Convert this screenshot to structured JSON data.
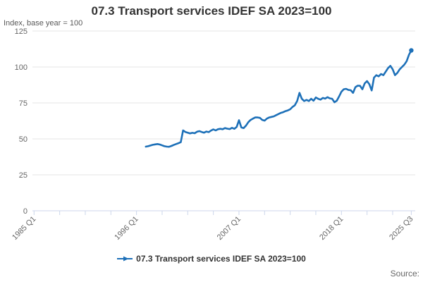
{
  "chart": {
    "title": "07.3 Transport services IDEF SA 2023=100",
    "subtitle": "Index, base year = 100",
    "source_label": "Source:"
  },
  "chart_data": {
    "type": "line",
    "title": "07.3 Transport services IDEF SA 2023=100",
    "subtitle": "Index, base year = 100",
    "ylabel": "Index, base year = 100",
    "ylim": [
      0,
      125
    ],
    "y_ticks": [
      0,
      25,
      50,
      75,
      100,
      125
    ],
    "grid": true,
    "legend_position": "bottom",
    "x_axis": {
      "start": "1985 Q1",
      "end": "2025 Q3",
      "unit": "quarter",
      "total_quarters": 162,
      "minor_tick_every_quarters": 11,
      "labeled_ticks": [
        {
          "label": "1985 Q1",
          "quarter_index": 0
        },
        {
          "label": "1996 Q1",
          "quarter_index": 44
        },
        {
          "label": "2007 Q1",
          "quarter_index": 88
        },
        {
          "label": "2018 Q1",
          "quarter_index": 132
        },
        {
          "label": "2025 Q3",
          "quarter_index": 162
        }
      ]
    },
    "series": [
      {
        "name": "07.3 Transport services IDEF SA 2023=100",
        "color": "#1d70b8",
        "frequency": "quarterly",
        "start": "1997 Q1",
        "end": "2025 Q3",
        "start_quarter_index": 48,
        "values": [
          44.6,
          44.9,
          45.4,
          45.9,
          46.2,
          46.4,
          46.1,
          45.5,
          44.9,
          44.6,
          44.5,
          45.1,
          45.8,
          46.4,
          47.0,
          47.7,
          55.9,
          54.8,
          54.3,
          53.8,
          54.2,
          53.9,
          55.0,
          55.4,
          54.8,
          54.3,
          55.1,
          54.7,
          55.8,
          56.6,
          55.9,
          56.7,
          57.0,
          56.7,
          57.5,
          57.1,
          56.8,
          57.7,
          57.0,
          58.3,
          63.0,
          58.0,
          57.5,
          59.2,
          61.6,
          63.2,
          64.1,
          64.9,
          64.9,
          64.6,
          63.2,
          62.7,
          64.1,
          64.9,
          65.3,
          65.7,
          66.5,
          67.3,
          68.1,
          68.6,
          69.3,
          69.8,
          70.6,
          72.2,
          73.4,
          76.3,
          82.0,
          77.9,
          76.3,
          77.1,
          76.3,
          77.9,
          76.5,
          78.8,
          77.9,
          77.3,
          78.5,
          78.0,
          79.0,
          78.2,
          77.9,
          75.5,
          76.5,
          79.5,
          82.8,
          84.5,
          84.8,
          84.0,
          83.8,
          82.0,
          86.0,
          87.0,
          86.9,
          84.5,
          88.6,
          90.2,
          88.0,
          83.7,
          92.6,
          94.3,
          93.5,
          95.1,
          94.3,
          96.7,
          99.2,
          100.8,
          98.4,
          94.3,
          95.9,
          98.4,
          100.0,
          101.6,
          104.0,
          108.5,
          111.5
        ]
      }
    ],
    "colors": {
      "line": "#1d70b8",
      "gridline": "#e6e6e6",
      "axis": "#ccd6eb",
      "axis_label": "#666666",
      "title": "#333333"
    }
  }
}
